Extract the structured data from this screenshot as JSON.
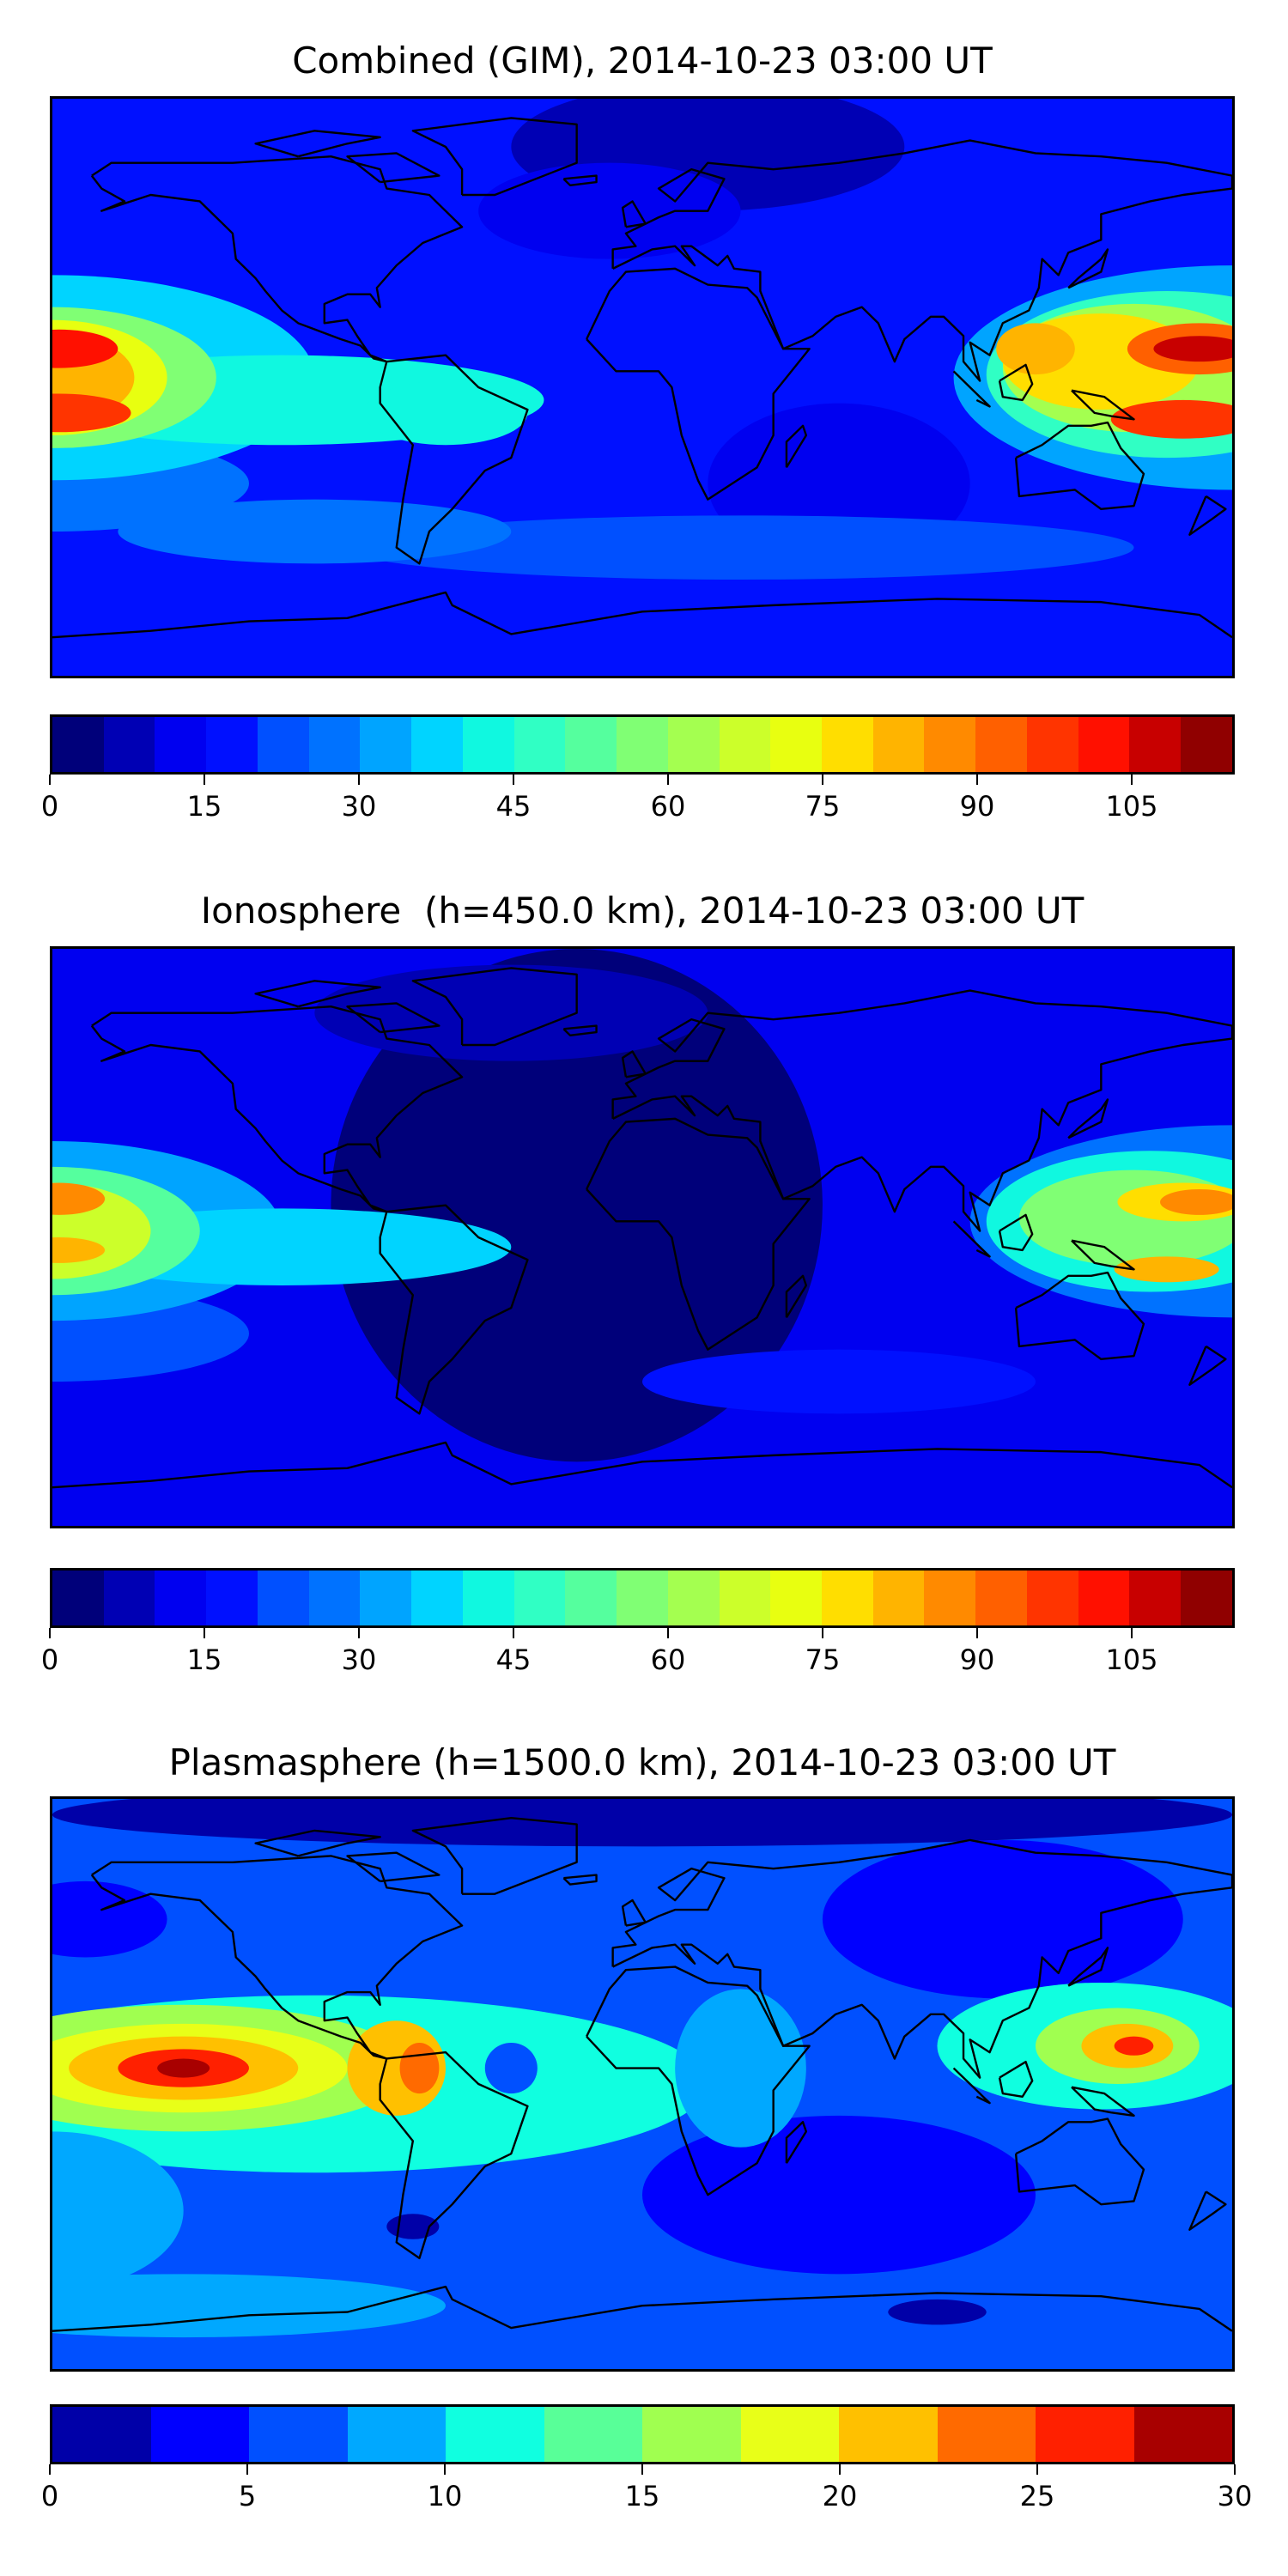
{
  "chart_data": [
    {
      "type": "heatmap",
      "title": "Combined (GIM), 2014-10-23 03:00 UT",
      "colorbar": {
        "min": 0,
        "max": 115,
        "step": 5,
        "ticks": [
          "0",
          "15",
          "30",
          "45",
          "60",
          "75",
          "90",
          "105"
        ],
        "tick_values": [
          0,
          15,
          30,
          45,
          60,
          75,
          90,
          105
        ],
        "colors": [
          "#00007a",
          "#0000b4",
          "#0000f0",
          "#0010ff",
          "#0050ff",
          "#0072ff",
          "#00a4ff",
          "#00d4ff",
          "#10f8e0",
          "#30ffc4",
          "#55ff9e",
          "#80ff74",
          "#a4ff50",
          "#ccff2a",
          "#e8ff10",
          "#ffde00",
          "#ffb400",
          "#ff8a00",
          "#ff6000",
          "#ff3400",
          "#ff1000",
          "#c80000",
          "#900000"
        ]
      }
    },
    {
      "type": "heatmap",
      "title": "Ionosphere  (h=450.0 km), 2014-10-23 03:00 UT",
      "colorbar": {
        "min": 0,
        "max": 115,
        "step": 5,
        "ticks": [
          "0",
          "15",
          "30",
          "45",
          "60",
          "75",
          "90",
          "105"
        ],
        "tick_values": [
          0,
          15,
          30,
          45,
          60,
          75,
          90,
          105
        ],
        "colors": [
          "#00007a",
          "#0000b4",
          "#0000f0",
          "#0010ff",
          "#0050ff",
          "#0072ff",
          "#00a4ff",
          "#00d4ff",
          "#10f8e0",
          "#30ffc4",
          "#55ff9e",
          "#80ff74",
          "#a4ff50",
          "#ccff2a",
          "#e8ff10",
          "#ffde00",
          "#ffb400",
          "#ff8a00",
          "#ff6000",
          "#ff3400",
          "#ff1000",
          "#c80000",
          "#900000"
        ]
      }
    },
    {
      "type": "heatmap",
      "title": "Plasmasphere (h=1500.0 km), 2014-10-23 03:00 UT",
      "colorbar": {
        "min": 0,
        "max": 30,
        "step": 2.5,
        "ticks": [
          "0",
          "5",
          "10",
          "15",
          "20",
          "25",
          "30"
        ],
        "tick_values": [
          0,
          5,
          10,
          15,
          20,
          25,
          30
        ],
        "colors": [
          "#0000a8",
          "#0000ff",
          "#0050ff",
          "#00a8ff",
          "#10ffe0",
          "#58ff98",
          "#a0ff50",
          "#e8ff18",
          "#ffc000",
          "#ff6a00",
          "#ff2000",
          "#a80000"
        ]
      }
    }
  ]
}
